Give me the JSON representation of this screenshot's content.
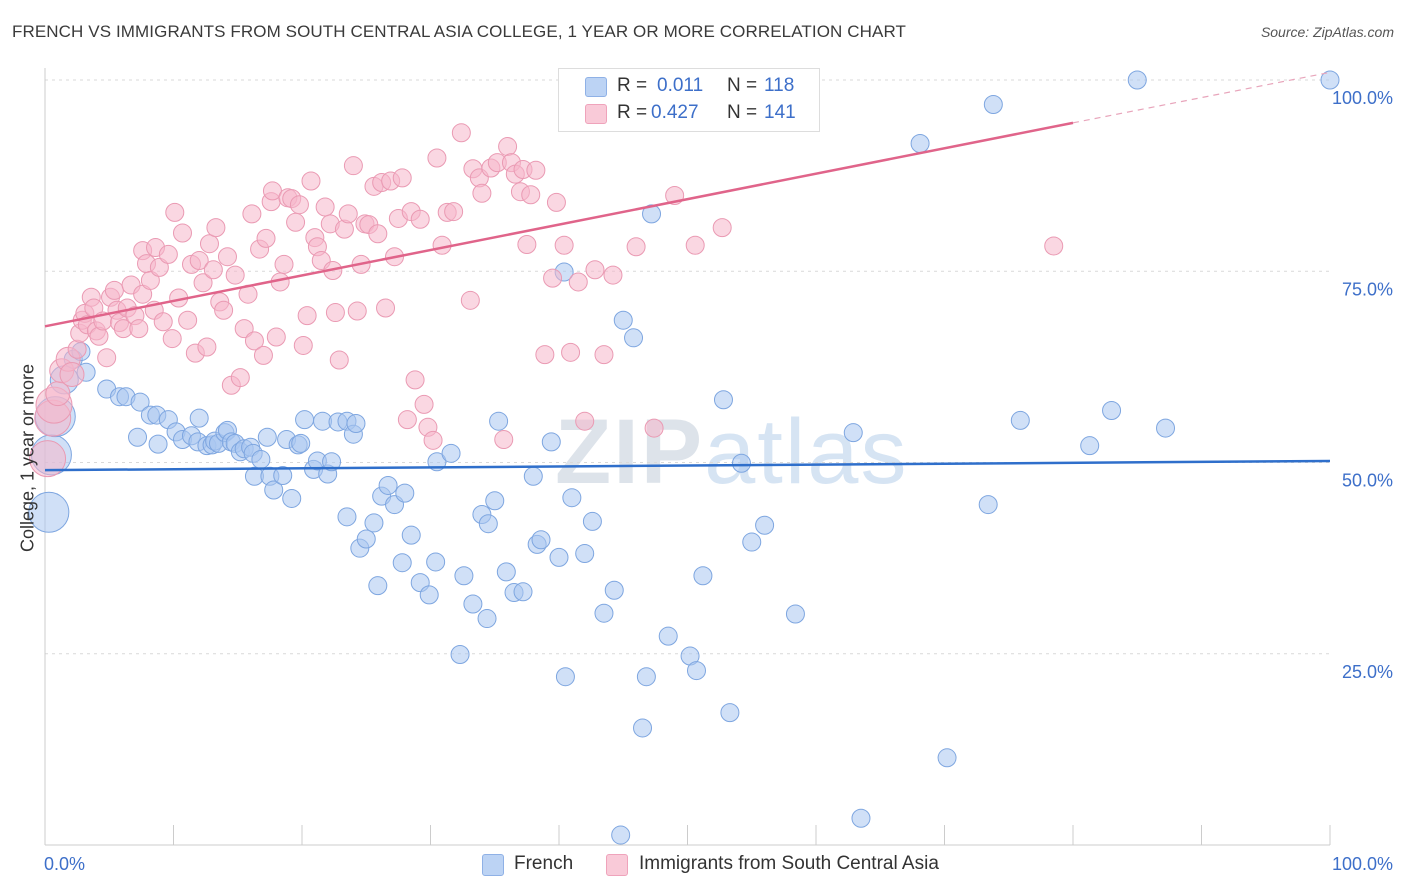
{
  "header": {
    "title": "FRENCH VS IMMIGRANTS FROM SOUTH CENTRAL ASIA COLLEGE, 1 YEAR OR MORE CORRELATION CHART",
    "source": "Source: ZipAtlas.com"
  },
  "watermark": {
    "part1": "ZIP",
    "part2": "atlas"
  },
  "legend_top": {
    "rows": [
      {
        "r_label": "R =",
        "r_value": "0.011",
        "n_label": "N =",
        "n_value": "118",
        "color": "#a9c6f0"
      },
      {
        "r_label": "R =",
        "r_value": "0.427",
        "n_label": "N =",
        "n_value": "141",
        "color": "#f6b7ca"
      }
    ]
  },
  "legend_bottom": {
    "items": [
      {
        "label": "French",
        "color": "#a9c6f0"
      },
      {
        "label": "Immigrants from South Central Asia",
        "color": "#f6b7ca"
      }
    ]
  },
  "chart_data": {
    "type": "scatter",
    "title": "FRENCH VS IMMIGRANTS FROM SOUTH CENTRAL ASIA COLLEGE, 1 YEAR OR MORE CORRELATION CHART",
    "xlabel": "",
    "ylabel": "College, 1 year or more",
    "xlim": [
      0,
      100
    ],
    "ylim": [
      0,
      100
    ],
    "x_tick_labels": [
      "0.0%",
      "100.0%"
    ],
    "y_tick_labels": [
      "25.0%",
      "50.0%",
      "75.0%",
      "100.0%"
    ],
    "y_ticks": [
      25,
      50,
      75,
      100
    ],
    "grid": true,
    "legend_position": "top-center",
    "colors": {
      "french": "#a9c6f0",
      "french_line": "#2f6fcb",
      "immigrants": "#f6b7ca",
      "immigrants_line": "#e0648a",
      "axis_label": "#3d6fc9"
    },
    "series": [
      {
        "name": "French",
        "r": 0.011,
        "n": 118,
        "trend": {
          "x0": 0,
          "y0": 49.0,
          "x1": 100,
          "y1": 50.2
        },
        "points": [
          [
            0.3,
            43.5
          ],
          [
            0.5,
            51.0
          ],
          [
            0.8,
            56.0
          ],
          [
            1.5,
            60.8
          ],
          [
            2.2,
            63.5
          ],
          [
            2.8,
            64.5
          ],
          [
            3.2,
            61.8
          ],
          [
            4.8,
            59.6
          ],
          [
            5.8,
            58.6
          ],
          [
            6.3,
            58.6
          ],
          [
            7.2,
            53.3
          ],
          [
            7.4,
            57.9
          ],
          [
            8.2,
            56.2
          ],
          [
            8.7,
            56.2
          ],
          [
            8.8,
            52.4
          ],
          [
            9.6,
            55.6
          ],
          [
            10.2,
            54.0
          ],
          [
            10.7,
            53.0
          ],
          [
            11.4,
            53.5
          ],
          [
            11.9,
            52.7
          ],
          [
            12.0,
            55.8
          ],
          [
            12.6,
            52.2
          ],
          [
            13.0,
            52.3
          ],
          [
            13.2,
            52.8
          ],
          [
            13.5,
            52.5
          ],
          [
            14.0,
            53.9
          ],
          [
            14.2,
            54.2
          ],
          [
            14.5,
            52.7
          ],
          [
            14.8,
            52.5
          ],
          [
            15.2,
            51.4
          ],
          [
            15.5,
            51.8
          ],
          [
            16.0,
            52.0
          ],
          [
            16.2,
            51.2
          ],
          [
            16.8,
            50.4
          ],
          [
            16.3,
            48.2
          ],
          [
            17.3,
            53.3
          ],
          [
            17.5,
            48.2
          ],
          [
            17.8,
            46.4
          ],
          [
            18.5,
            48.3
          ],
          [
            18.8,
            53.0
          ],
          [
            19.2,
            45.3
          ],
          [
            19.7,
            52.3
          ],
          [
            19.9,
            52.5
          ],
          [
            20.2,
            55.6
          ],
          [
            20.9,
            49.1
          ],
          [
            21.2,
            50.2
          ],
          [
            21.6,
            55.4
          ],
          [
            22.0,
            48.5
          ],
          [
            22.3,
            50.1
          ],
          [
            22.8,
            55.3
          ],
          [
            23.5,
            55.4
          ],
          [
            23.5,
            42.9
          ],
          [
            24.0,
            53.7
          ],
          [
            24.2,
            55.1
          ],
          [
            24.5,
            38.8
          ],
          [
            25.0,
            40.0
          ],
          [
            25.6,
            42.1
          ],
          [
            25.9,
            33.9
          ],
          [
            26.2,
            45.6
          ],
          [
            26.7,
            47.0
          ],
          [
            27.2,
            44.5
          ],
          [
            27.8,
            36.9
          ],
          [
            28.0,
            46.0
          ],
          [
            28.5,
            40.5
          ],
          [
            29.2,
            34.3
          ],
          [
            29.9,
            32.7
          ],
          [
            30.4,
            37.0
          ],
          [
            30.5,
            50.1
          ],
          [
            31.6,
            51.2
          ],
          [
            32.3,
            24.9
          ],
          [
            32.6,
            35.2
          ],
          [
            33.3,
            31.5
          ],
          [
            34.0,
            43.2
          ],
          [
            34.4,
            29.6
          ],
          [
            34.5,
            42.0
          ],
          [
            35.0,
            45.0
          ],
          [
            35.3,
            55.4
          ],
          [
            35.9,
            35.7
          ],
          [
            36.5,
            33.0
          ],
          [
            37.2,
            33.1
          ],
          [
            38.0,
            48.2
          ],
          [
            38.3,
            39.3
          ],
          [
            38.6,
            39.9
          ],
          [
            39.4,
            52.7
          ],
          [
            40.0,
            37.6
          ],
          [
            40.5,
            22.0
          ],
          [
            40.4,
            74.9
          ],
          [
            41.0,
            45.4
          ],
          [
            42.0,
            38.1
          ],
          [
            42.6,
            42.3
          ],
          [
            43.5,
            30.3
          ],
          [
            44.3,
            33.3
          ],
          [
            44.8,
            1.3
          ],
          [
            45.0,
            68.6
          ],
          [
            45.8,
            66.3
          ],
          [
            46.5,
            15.3
          ],
          [
            46.8,
            22.0
          ],
          [
            47.2,
            82.5
          ],
          [
            48.5,
            27.3
          ],
          [
            50.2,
            24.7
          ],
          [
            50.7,
            22.8
          ],
          [
            51.2,
            35.2
          ],
          [
            52.8,
            58.2
          ],
          [
            53.3,
            17.3
          ],
          [
            54.2,
            49.9
          ],
          [
            55.0,
            39.6
          ],
          [
            56.0,
            41.8
          ],
          [
            57.2,
            100.0
          ],
          [
            58.4,
            30.2
          ],
          [
            62.9,
            53.9
          ],
          [
            63.5,
            3.5
          ],
          [
            68.1,
            91.7
          ],
          [
            70.2,
            11.4
          ],
          [
            73.4,
            44.5
          ],
          [
            73.8,
            96.8
          ],
          [
            75.9,
            55.5
          ],
          [
            81.3,
            52.2
          ],
          [
            83.0,
            56.8
          ],
          [
            85.0,
            100.0
          ],
          [
            87.2,
            54.5
          ],
          [
            100.0,
            100.0
          ]
        ]
      },
      {
        "name": "Immigrants from South Central Asia",
        "r": 0.427,
        "n": 141,
        "trend": {
          "x0": 0,
          "y0": 67.8,
          "x1": 80,
          "y1": 94.4,
          "dash_x1": 100,
          "dash_y1": 101.0
        },
        "points": [
          [
            0.2,
            50.5
          ],
          [
            0.6,
            55.8
          ],
          [
            0.7,
            57.5
          ],
          [
            1.0,
            59.0
          ],
          [
            1.3,
            62.0
          ],
          [
            1.8,
            63.5
          ],
          [
            2.1,
            61.5
          ],
          [
            2.5,
            64.8
          ],
          [
            2.7,
            66.9
          ],
          [
            2.9,
            68.6
          ],
          [
            3.1,
            69.5
          ],
          [
            3.3,
            68.0
          ],
          [
            3.6,
            71.6
          ],
          [
            3.8,
            70.2
          ],
          [
            4.0,
            67.2
          ],
          [
            4.2,
            66.5
          ],
          [
            4.5,
            68.5
          ],
          [
            4.8,
            63.7
          ],
          [
            5.1,
            71.6
          ],
          [
            5.4,
            72.5
          ],
          [
            5.6,
            69.9
          ],
          [
            5.8,
            68.3
          ],
          [
            6.1,
            67.5
          ],
          [
            6.4,
            70.2
          ],
          [
            6.7,
            73.2
          ],
          [
            7.0,
            69.2
          ],
          [
            7.3,
            67.5
          ],
          [
            7.6,
            72.0
          ],
          [
            7.6,
            77.7
          ],
          [
            7.9,
            76.0
          ],
          [
            8.2,
            73.8
          ],
          [
            8.5,
            69.9
          ],
          [
            8.6,
            78.1
          ],
          [
            8.9,
            75.5
          ],
          [
            9.2,
            68.4
          ],
          [
            9.6,
            77.2
          ],
          [
            9.9,
            66.2
          ],
          [
            10.1,
            82.7
          ],
          [
            10.4,
            71.5
          ],
          [
            10.7,
            80.0
          ],
          [
            11.1,
            68.6
          ],
          [
            11.4,
            75.9
          ],
          [
            11.7,
            64.3
          ],
          [
            12.0,
            76.4
          ],
          [
            12.3,
            73.5
          ],
          [
            12.6,
            65.1
          ],
          [
            12.8,
            78.6
          ],
          [
            13.1,
            75.2
          ],
          [
            13.3,
            80.7
          ],
          [
            13.6,
            71.0
          ],
          [
            13.9,
            69.9
          ],
          [
            14.2,
            76.9
          ],
          [
            14.5,
            60.1
          ],
          [
            14.8,
            74.5
          ],
          [
            15.2,
            61.1
          ],
          [
            15.5,
            67.5
          ],
          [
            15.8,
            72.0
          ],
          [
            16.1,
            82.5
          ],
          [
            16.3,
            65.9
          ],
          [
            16.7,
            77.9
          ],
          [
            17.0,
            64.0
          ],
          [
            17.2,
            79.3
          ],
          [
            17.6,
            84.1
          ],
          [
            17.7,
            85.5
          ],
          [
            18.0,
            66.4
          ],
          [
            18.3,
            73.6
          ],
          [
            18.6,
            75.9
          ],
          [
            18.9,
            84.6
          ],
          [
            19.2,
            84.5
          ],
          [
            19.5,
            81.4
          ],
          [
            19.8,
            83.7
          ],
          [
            20.1,
            65.3
          ],
          [
            20.4,
            69.2
          ],
          [
            20.7,
            86.8
          ],
          [
            21.0,
            79.4
          ],
          [
            21.2,
            78.2
          ],
          [
            21.5,
            76.4
          ],
          [
            21.8,
            83.4
          ],
          [
            22.2,
            81.2
          ],
          [
            22.4,
            75.1
          ],
          [
            22.6,
            69.6
          ],
          [
            22.9,
            63.4
          ],
          [
            23.3,
            80.5
          ],
          [
            23.6,
            82.5
          ],
          [
            24.0,
            88.8
          ],
          [
            24.3,
            69.8
          ],
          [
            24.6,
            75.9
          ],
          [
            24.9,
            81.2
          ],
          [
            25.2,
            81.1
          ],
          [
            25.6,
            86.1
          ],
          [
            25.9,
            79.9
          ],
          [
            26.2,
            86.6
          ],
          [
            26.5,
            70.2
          ],
          [
            26.9,
            86.8
          ],
          [
            27.2,
            76.9
          ],
          [
            27.5,
            81.9
          ],
          [
            27.8,
            87.2
          ],
          [
            28.2,
            55.6
          ],
          [
            28.5,
            82.8
          ],
          [
            28.8,
            60.8
          ],
          [
            29.2,
            81.8
          ],
          [
            29.5,
            57.6
          ],
          [
            29.8,
            54.6
          ],
          [
            30.2,
            52.9
          ],
          [
            30.5,
            89.8
          ],
          [
            30.9,
            78.4
          ],
          [
            31.3,
            82.7
          ],
          [
            31.8,
            82.8
          ],
          [
            32.4,
            93.1
          ],
          [
            33.1,
            71.2
          ],
          [
            33.3,
            88.4
          ],
          [
            33.8,
            87.2
          ],
          [
            34.0,
            85.2
          ],
          [
            34.7,
            88.5
          ],
          [
            35.2,
            89.2
          ],
          [
            35.7,
            53.0
          ],
          [
            36.0,
            91.3
          ],
          [
            36.3,
            89.2
          ],
          [
            36.6,
            87.7
          ],
          [
            37.0,
            85.4
          ],
          [
            37.2,
            88.3
          ],
          [
            37.5,
            78.5
          ],
          [
            37.8,
            85.0
          ],
          [
            38.2,
            88.2
          ],
          [
            38.9,
            64.1
          ],
          [
            39.5,
            74.1
          ],
          [
            39.8,
            84.0
          ],
          [
            40.4,
            78.4
          ],
          [
            40.9,
            64.4
          ],
          [
            41.5,
            73.6
          ],
          [
            42.0,
            55.4
          ],
          [
            42.8,
            75.2
          ],
          [
            43.5,
            64.1
          ],
          [
            44.2,
            74.5
          ],
          [
            46.0,
            78.2
          ],
          [
            47.4,
            54.5
          ],
          [
            49.0,
            84.9
          ],
          [
            50.6,
            78.4
          ],
          [
            52.7,
            80.7
          ],
          [
            78.5,
            78.3
          ]
        ]
      }
    ]
  }
}
